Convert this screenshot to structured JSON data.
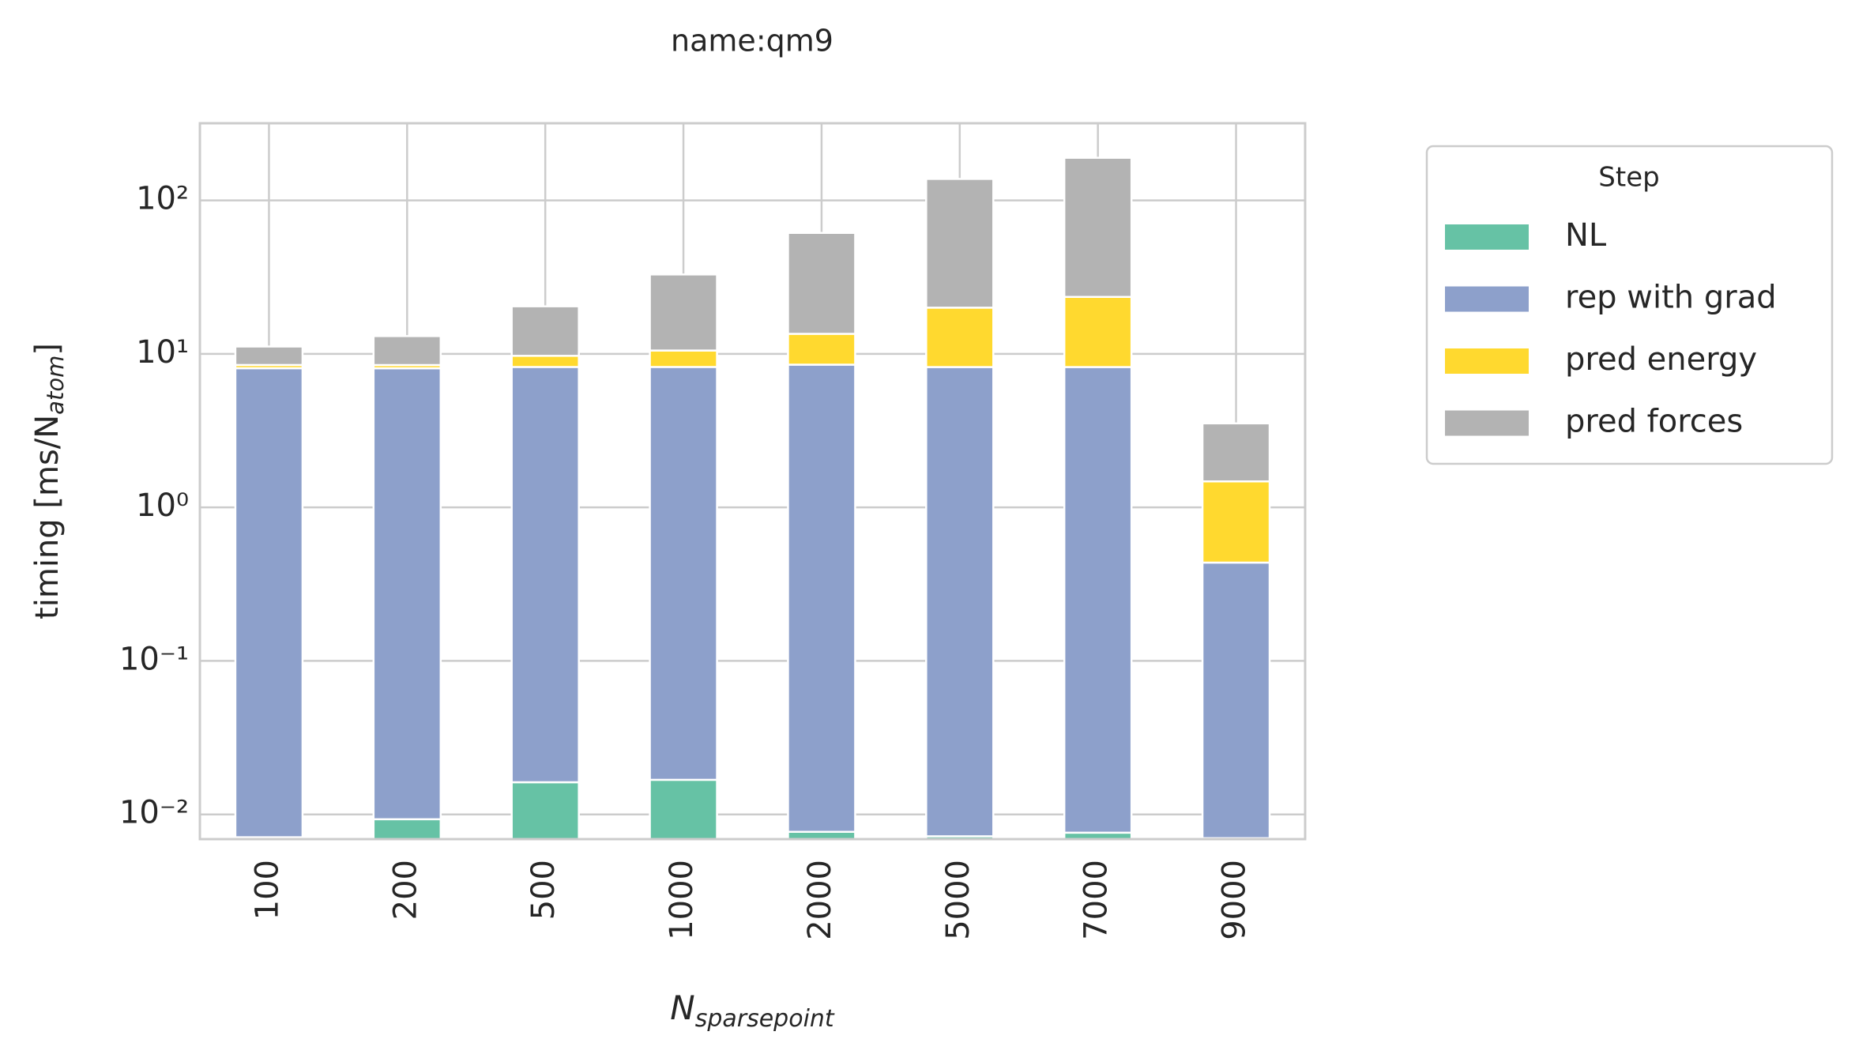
{
  "chart_data": {
    "type": "stacked-bar",
    "title": "name:qm9",
    "xlabel": {
      "text": "N",
      "subscript": "sparsepoint"
    },
    "ylabel": {
      "text": "timing [ms/N",
      "subscript": "atom",
      "close": "]"
    },
    "categories": [
      "100",
      "200",
      "500",
      "1000",
      "2000",
      "5000",
      "7000",
      "9000"
    ],
    "series": [
      {
        "name": "NL",
        "color": "#66c2a5",
        "values": [
          0.0071,
          0.0093,
          0.0162,
          0.0168,
          0.0077,
          0.0072,
          0.0076,
          0.007
        ]
      },
      {
        "name": "rep with grad",
        "color": "#8da0cb",
        "values": [
          8.06,
          8.05,
          8.2,
          8.2,
          8.5,
          8.2,
          8.2,
          0.43
        ]
      },
      {
        "name": "pred energy",
        "color": "#ffd92f",
        "values": [
          0.4,
          0.4,
          1.5,
          2.3,
          5.0,
          11.8,
          15.3,
          1.04
        ]
      },
      {
        "name": "pred forces",
        "color": "#b3b3b3",
        "values": [
          2.7,
          4.6,
          10.7,
          22.4,
          47.9,
          118,
          166,
          2.05
        ]
      }
    ],
    "ylim": [
      0.0069,
      318
    ],
    "log_y": true,
    "grid": true,
    "yticks": [
      {
        "value": 0.01,
        "label": "10⁻²"
      },
      {
        "value": 0.1,
        "label": "10⁻¹"
      },
      {
        "value": 1,
        "label": "10⁰"
      },
      {
        "value": 10,
        "label": "10¹"
      },
      {
        "value": 100,
        "label": "10²"
      }
    ],
    "legend": {
      "title": "Step",
      "position": "outside right"
    }
  }
}
